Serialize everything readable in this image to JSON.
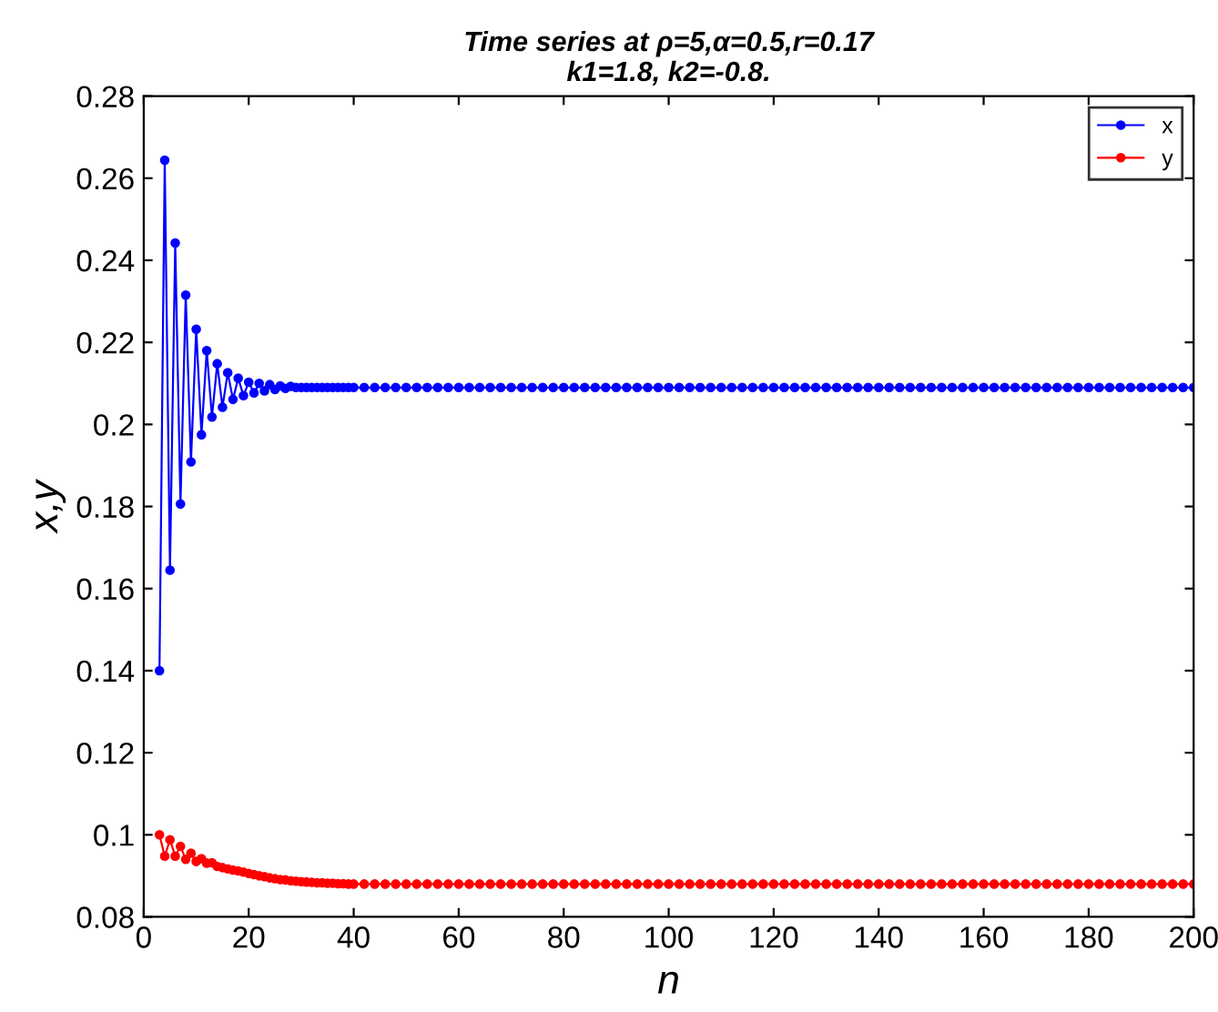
{
  "chart_data": {
    "type": "line",
    "title": "Time series at ρ=5,α=0.5,r=0.17\nk1=1.8, k2=-0.8.",
    "xlabel": "n",
    "ylabel": "x,y",
    "x": [
      3,
      4,
      5,
      6,
      7,
      8,
      9,
      10,
      11,
      12,
      13,
      14,
      15,
      16,
      17,
      18,
      19,
      20,
      21,
      22,
      23,
      24,
      25,
      26,
      27,
      28,
      29,
      30,
      31,
      32,
      33,
      34,
      35,
      36,
      37,
      38,
      39,
      40,
      42,
      44,
      46,
      48,
      50,
      52,
      54,
      56,
      58,
      60,
      62,
      64,
      66,
      68,
      70,
      72,
      74,
      76,
      78,
      80,
      82,
      84,
      86,
      88,
      90,
      92,
      94,
      96,
      98,
      100,
      102,
      104,
      106,
      108,
      110,
      112,
      114,
      116,
      118,
      120,
      122,
      124,
      126,
      128,
      130,
      132,
      134,
      136,
      138,
      140,
      142,
      144,
      146,
      148,
      150,
      152,
      154,
      156,
      158,
      160,
      162,
      164,
      166,
      168,
      170,
      172,
      174,
      176,
      178,
      180,
      182,
      184,
      186,
      188,
      190,
      192,
      194,
      196,
      198,
      200
    ],
    "series": [
      {
        "name": "x",
        "color": "#0000ff",
        "values": [
          0.14,
          0.2644,
          0.1645,
          0.2442,
          0.1806,
          0.2315,
          0.1909,
          0.2232,
          0.1975,
          0.218,
          0.2018,
          0.2148,
          0.2042,
          0.2126,
          0.2061,
          0.2113,
          0.207,
          0.2103,
          0.2077,
          0.21,
          0.2082,
          0.2097,
          0.2085,
          0.2094,
          0.2088,
          0.2093,
          0.209,
          0.209,
          0.209,
          0.209,
          0.209,
          0.209,
          0.209,
          0.209,
          0.209,
          0.209,
          0.209,
          0.209,
          0.209,
          0.209,
          0.209,
          0.209,
          0.209,
          0.209,
          0.209,
          0.209,
          0.209,
          0.209,
          0.209,
          0.209,
          0.209,
          0.209,
          0.209,
          0.209,
          0.209,
          0.209,
          0.209,
          0.209,
          0.209,
          0.209,
          0.209,
          0.209,
          0.209,
          0.209,
          0.209,
          0.209,
          0.209,
          0.209,
          0.209,
          0.209,
          0.209,
          0.209,
          0.209,
          0.209,
          0.209,
          0.209,
          0.209,
          0.209,
          0.209,
          0.209,
          0.209,
          0.209,
          0.209,
          0.209,
          0.209,
          0.209,
          0.209,
          0.209,
          0.209,
          0.209,
          0.209,
          0.209,
          0.209,
          0.209,
          0.209,
          0.209,
          0.209,
          0.209,
          0.209,
          0.209,
          0.209,
          0.209,
          0.209,
          0.209,
          0.209,
          0.209,
          0.209,
          0.209,
          0.209,
          0.209,
          0.209,
          0.209,
          0.209,
          0.209,
          0.209,
          0.209,
          0.209,
          0.209
        ]
      },
      {
        "name": "y",
        "color": "#ff0000",
        "values": [
          0.1,
          0.0948,
          0.0988,
          0.0948,
          0.0972,
          0.094,
          0.0955,
          0.0935,
          0.0942,
          0.0931,
          0.0932,
          0.0923,
          0.092,
          0.0917,
          0.0914,
          0.0912,
          0.0909,
          0.0906,
          0.0903,
          0.09,
          0.0898,
          0.0895,
          0.0893,
          0.0891,
          0.089,
          0.0888,
          0.0887,
          0.0886,
          0.0885,
          0.0884,
          0.0883,
          0.0883,
          0.0882,
          0.0882,
          0.0881,
          0.0881,
          0.088,
          0.088,
          0.088,
          0.088,
          0.088,
          0.088,
          0.088,
          0.088,
          0.088,
          0.088,
          0.088,
          0.088,
          0.088,
          0.088,
          0.088,
          0.088,
          0.088,
          0.088,
          0.088,
          0.088,
          0.088,
          0.088,
          0.088,
          0.088,
          0.088,
          0.088,
          0.088,
          0.088,
          0.088,
          0.088,
          0.088,
          0.088,
          0.088,
          0.088,
          0.088,
          0.088,
          0.088,
          0.088,
          0.088,
          0.088,
          0.088,
          0.088,
          0.088,
          0.088,
          0.088,
          0.088,
          0.088,
          0.088,
          0.088,
          0.088,
          0.088,
          0.088,
          0.088,
          0.088,
          0.088,
          0.088,
          0.088,
          0.088,
          0.088,
          0.088,
          0.088,
          0.088,
          0.088,
          0.088,
          0.088,
          0.088,
          0.088,
          0.088,
          0.088,
          0.088,
          0.088,
          0.088,
          0.088,
          0.088,
          0.088,
          0.088,
          0.088,
          0.088,
          0.088,
          0.088,
          0.088,
          0.088
        ]
      }
    ],
    "xlim": [
      0,
      200
    ],
    "xticks": [
      0,
      20,
      40,
      60,
      80,
      100,
      120,
      140,
      160,
      180,
      200
    ],
    "ylim": [
      0.08,
      0.28
    ],
    "yticks": [
      0.08,
      0.1,
      0.12,
      0.14,
      0.16,
      0.18,
      0.2,
      0.22,
      0.24,
      0.26,
      0.28
    ],
    "grid": false,
    "legend": "top right",
    "marker": "circle",
    "line_style": "solid"
  }
}
